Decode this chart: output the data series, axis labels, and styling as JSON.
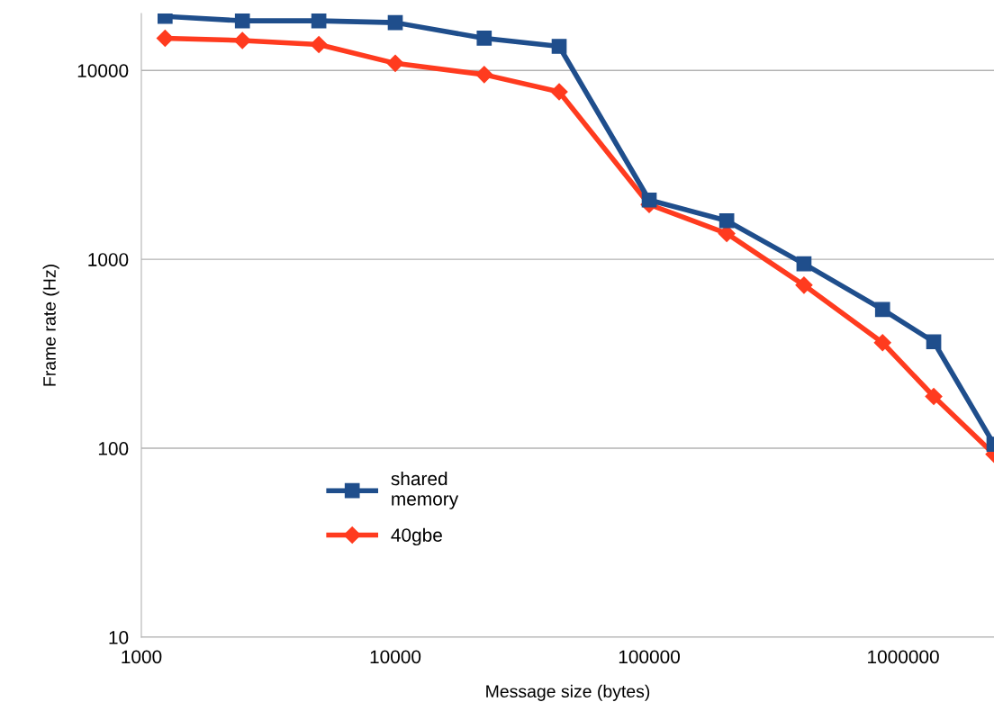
{
  "chart_data": {
    "type": "line",
    "xlabel": "Message size (bytes)",
    "ylabel": "Frame rate (Hz)",
    "log": "xy",
    "xlim": [
      1000,
      2280000
    ],
    "ylim": [
      10,
      20000
    ],
    "xticks": [
      1000,
      10000,
      100000,
      1000000
    ],
    "yticks": [
      10,
      100,
      1000,
      10000
    ],
    "grid": "y",
    "legend": "bottom",
    "line_style": "solid",
    "series": [
      {
        "name": "shared\nmemory",
        "color": "#1f4e8c",
        "marker": "square",
        "x": [
          1240,
          2500,
          5000,
          10000,
          22400,
          44200,
          100000,
          202000,
          407000,
          830000,
          1320000,
          2280000
        ],
        "values": [
          19300,
          18300,
          18300,
          17900,
          14800,
          13400,
          2060,
          1600,
          946,
          543,
          366,
          105
        ]
      },
      {
        "name": "40gbe",
        "color": "#ff3b1f",
        "marker": "diamond",
        "x": [
          1240,
          2500,
          5000,
          10000,
          22400,
          44200,
          100000,
          202000,
          407000,
          830000,
          1320000,
          2280000
        ],
        "values": [
          14800,
          14400,
          13700,
          10900,
          9500,
          7700,
          1950,
          1370,
          730,
          362,
          188,
          93
        ]
      }
    ]
  }
}
